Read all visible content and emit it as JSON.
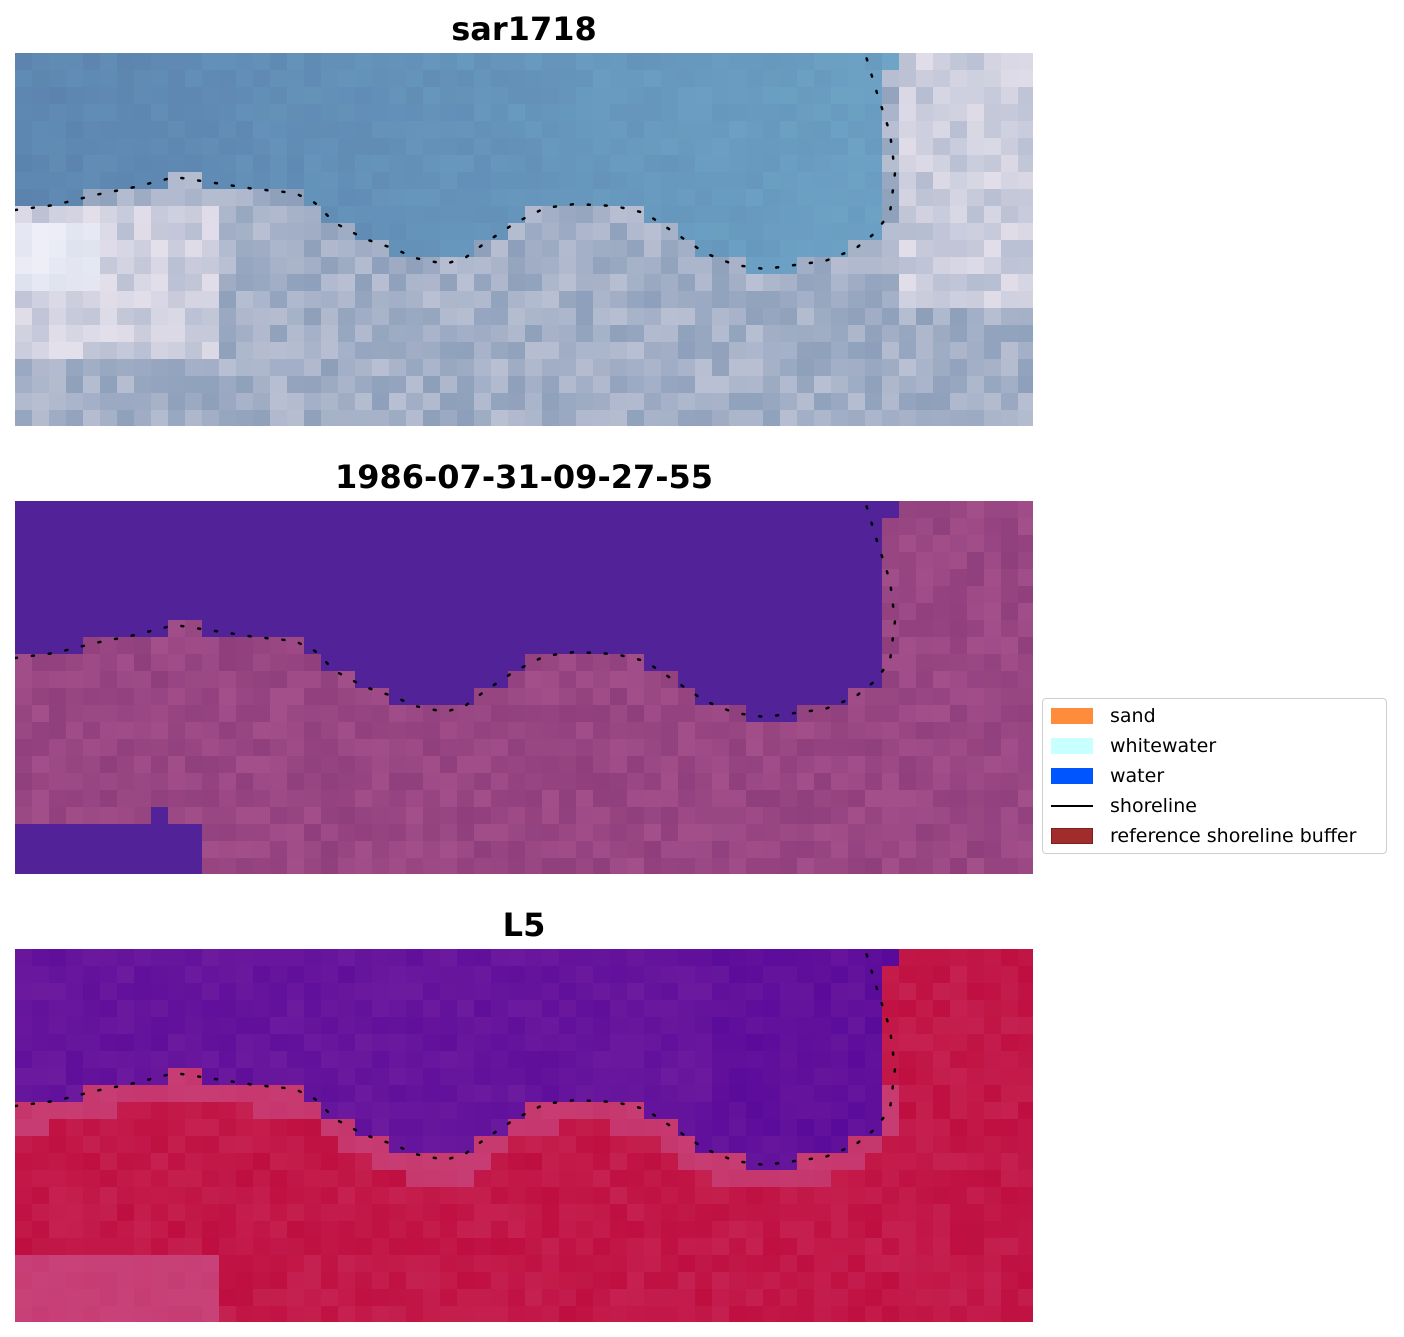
{
  "panels": [
    {
      "title": "sar1718",
      "style": "rgb",
      "colors": {
        "water": "#5b82ad",
        "water_light": "#6fa6c8",
        "land": "#8d9fba",
        "land_light": "#e6e1ec",
        "bright": "#f4f8ff"
      }
    },
    {
      "title": "1986-07-31-09-27-55",
      "style": "classified",
      "colors": {
        "water": "#522398",
        "land": "#8f3f7c",
        "land_light": "#b05a94"
      }
    },
    {
      "title": "L5",
      "style": "index",
      "colors": {
        "water": "#6c1a9e",
        "water_dark": "#5a0a9a",
        "land": "#c52150",
        "land_dark": "#bd0a3c",
        "edge": "#c9508a"
      }
    }
  ],
  "legend": {
    "items": [
      {
        "label": "sand",
        "color": "#ff8c3b",
        "kind": "patch"
      },
      {
        "label": "whitewater",
        "color": "#c8ffff",
        "kind": "patch"
      },
      {
        "label": "water",
        "color": "#0055ff",
        "kind": "patch"
      },
      {
        "label": "shoreline",
        "color": "#000000",
        "kind": "line"
      },
      {
        "label": "reference shoreline buffer",
        "color": "#a02c2c",
        "kind": "patch"
      }
    ]
  }
}
